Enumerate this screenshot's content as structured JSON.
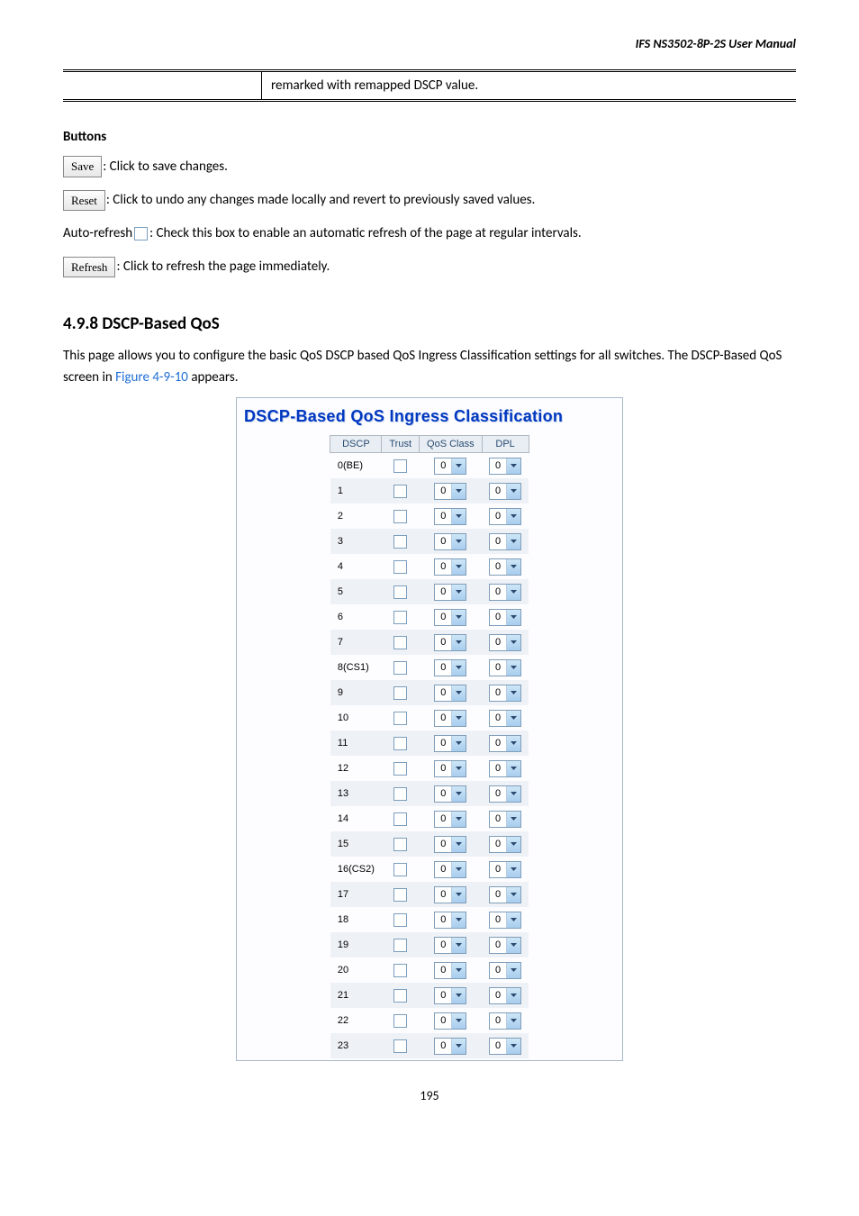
{
  "header": "IFS  NS3502-8P-2S  User  Manual",
  "topTable": {
    "right": "remarked with remapped DSCP value."
  },
  "buttons": {
    "title": "Buttons",
    "save": {
      "label": "Save",
      "text": ": Click to save changes."
    },
    "reset": {
      "label": "Reset",
      "text": ": Click to undo any changes made locally and revert to previously saved values."
    },
    "autorefresh": {
      "prefix": "Auto-refresh ",
      "text": ": Check this box to enable an automatic refresh of the page at regular intervals."
    },
    "refresh": {
      "label": "Refresh",
      "text": ": Click to refresh the page immediately."
    }
  },
  "section": {
    "heading": "4.9.8 DSCP-Based QoS",
    "textBefore": "This page allows you to configure the basic QoS DSCP based QoS Ingress Classification settings for all switches. The DSCP-Based QoS screen in ",
    "figref": "Figure 4-9-10",
    "textAfter": " appears."
  },
  "screenshot": {
    "title": "DSCP-Based QoS Ingress Classification",
    "headers": [
      "DSCP",
      "Trust",
      "QoS Class",
      "DPL"
    ],
    "rows": [
      {
        "dscp": "0(BE)",
        "qos": "0",
        "dpl": "0",
        "alt": false
      },
      {
        "dscp": "1",
        "qos": "0",
        "dpl": "0",
        "alt": true
      },
      {
        "dscp": "2",
        "qos": "0",
        "dpl": "0",
        "alt": false
      },
      {
        "dscp": "3",
        "qos": "0",
        "dpl": "0",
        "alt": true
      },
      {
        "dscp": "4",
        "qos": "0",
        "dpl": "0",
        "alt": false
      },
      {
        "dscp": "5",
        "qos": "0",
        "dpl": "0",
        "alt": true
      },
      {
        "dscp": "6",
        "qos": "0",
        "dpl": "0",
        "alt": false
      },
      {
        "dscp": "7",
        "qos": "0",
        "dpl": "0",
        "alt": true
      },
      {
        "dscp": "8(CS1)",
        "qos": "0",
        "dpl": "0",
        "alt": false
      },
      {
        "dscp": "9",
        "qos": "0",
        "dpl": "0",
        "alt": true
      },
      {
        "dscp": "10",
        "qos": "0",
        "dpl": "0",
        "alt": false
      },
      {
        "dscp": "11",
        "qos": "0",
        "dpl": "0",
        "alt": true
      },
      {
        "dscp": "12",
        "qos": "0",
        "dpl": "0",
        "alt": false
      },
      {
        "dscp": "13",
        "qos": "0",
        "dpl": "0",
        "alt": true
      },
      {
        "dscp": "14",
        "qos": "0",
        "dpl": "0",
        "alt": false
      },
      {
        "dscp": "15",
        "qos": "0",
        "dpl": "0",
        "alt": true
      },
      {
        "dscp": "16(CS2)",
        "qos": "0",
        "dpl": "0",
        "alt": false
      },
      {
        "dscp": "17",
        "qos": "0",
        "dpl": "0",
        "alt": true
      },
      {
        "dscp": "18",
        "qos": "0",
        "dpl": "0",
        "alt": false
      },
      {
        "dscp": "19",
        "qos": "0",
        "dpl": "0",
        "alt": true
      },
      {
        "dscp": "20",
        "qos": "0",
        "dpl": "0",
        "alt": false
      },
      {
        "dscp": "21",
        "qos": "0",
        "dpl": "0",
        "alt": true
      },
      {
        "dscp": "22",
        "qos": "0",
        "dpl": "0",
        "alt": false
      },
      {
        "dscp": "23",
        "qos": "0",
        "dpl": "0",
        "alt": true
      }
    ]
  },
  "pageNumber": "195"
}
